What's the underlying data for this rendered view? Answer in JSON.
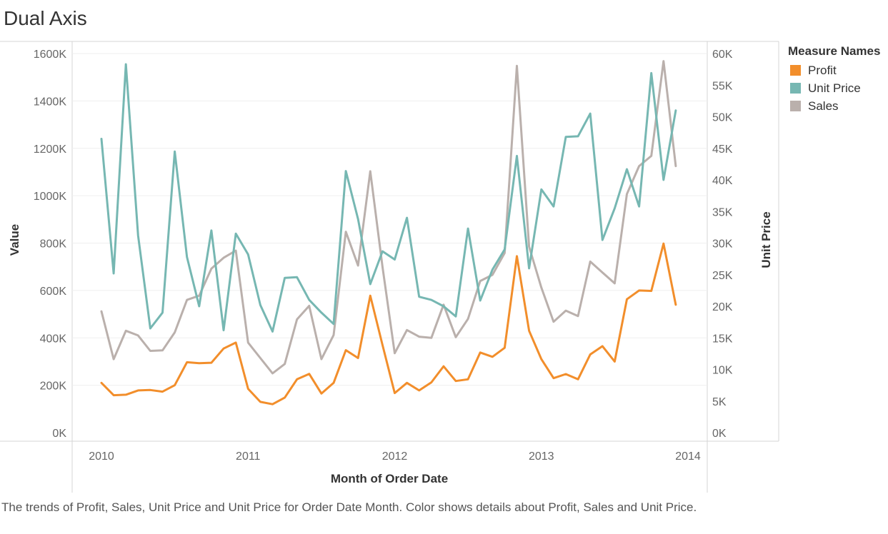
{
  "title": "Dual Axis",
  "caption": "The trends of Profit, Sales, Unit Price and Unit Price for Order Date Month.  Color shows details about Profit, Sales and Unit Price.",
  "chart_data": {
    "type": "line",
    "title": "Dual Axis",
    "xlabel": "Month of Order Date",
    "ylabel": "Value",
    "y2label": "Unit Price",
    "x_tick_labels": [
      "2010",
      "2011",
      "2012",
      "2013",
      "2014"
    ],
    "y_tick_labels": [
      "0K",
      "200K",
      "400K",
      "600K",
      "800K",
      "1000K",
      "1200K",
      "1400K",
      "1600K"
    ],
    "y2_tick_labels": [
      "0K",
      "5K",
      "10K",
      "15K",
      "20K",
      "25K",
      "30K",
      "35K",
      "40K",
      "45K",
      "50K",
      "55K",
      "60K"
    ],
    "ylim": [
      0,
      1600000
    ],
    "y2lim": [
      0,
      60000
    ],
    "x": [
      "2010-01",
      "2010-02",
      "2010-03",
      "2010-04",
      "2010-05",
      "2010-06",
      "2010-07",
      "2010-08",
      "2010-09",
      "2010-10",
      "2010-11",
      "2010-12",
      "2011-01",
      "2011-02",
      "2011-03",
      "2011-04",
      "2011-05",
      "2011-06",
      "2011-07",
      "2011-08",
      "2011-09",
      "2011-10",
      "2011-11",
      "2011-12",
      "2012-01",
      "2012-02",
      "2012-03",
      "2012-04",
      "2012-05",
      "2012-06",
      "2012-07",
      "2012-08",
      "2012-09",
      "2012-10",
      "2012-11",
      "2012-12",
      "2013-01",
      "2013-02",
      "2013-03",
      "2013-04",
      "2013-05",
      "2013-06",
      "2013-07",
      "2013-08",
      "2013-09",
      "2013-10",
      "2013-11",
      "2013-12"
    ],
    "legend_title": "Measure Names",
    "legend_position": "right",
    "grid": true,
    "series": [
      {
        "name": "Profit",
        "color": "#f28e2b",
        "axis": "left",
        "values": [
          210000,
          158000,
          160000,
          178000,
          180000,
          173000,
          200000,
          297000,
          293000,
          295000,
          355000,
          380000,
          185000,
          130000,
          120000,
          148000,
          225000,
          248000,
          165000,
          210000,
          348000,
          315000,
          578000,
          370000,
          167000,
          210000,
          178000,
          212000,
          280000,
          218000,
          225000,
          338000,
          320000,
          358000,
          745000,
          430000,
          310000,
          230000,
          247000,
          225000,
          330000,
          365000,
          300000,
          563000,
          600000,
          598000,
          798000,
          540000
        ]
      },
      {
        "name": "Unit Price",
        "color": "#76b7b2",
        "axis": "right",
        "values": [
          46500,
          25200,
          58300,
          31200,
          16500,
          19000,
          44500,
          27800,
          20000,
          32000,
          16200,
          31500,
          28200,
          20200,
          16000,
          24500,
          24600,
          21000,
          19000,
          17200,
          41400,
          33800,
          23500,
          28700,
          27400,
          34000,
          21500,
          21000,
          20000,
          18400,
          32300,
          20900,
          25800,
          29000,
          43800,
          26000,
          38500,
          35800,
          46800,
          46900,
          50500,
          30500,
          35500,
          41700,
          35800,
          56900,
          40000,
          51000
        ]
      },
      {
        "name": "Sales",
        "color": "#bab0ac",
        "axis": "left",
        "values": [
          512000,
          310000,
          430000,
          410000,
          345000,
          347000,
          423000,
          560000,
          578000,
          692000,
          738000,
          768000,
          380000,
          315000,
          250000,
          290000,
          478000,
          535000,
          310000,
          412000,
          848000,
          705000,
          1103000,
          700000,
          335000,
          433000,
          405000,
          400000,
          540000,
          403000,
          480000,
          640000,
          666000,
          758000,
          1548000,
          785000,
          612000,
          468000,
          515000,
          492000,
          722000,
          676000,
          630000,
          1007000,
          1125000,
          1168000,
          1568000,
          1125000
        ]
      }
    ]
  }
}
